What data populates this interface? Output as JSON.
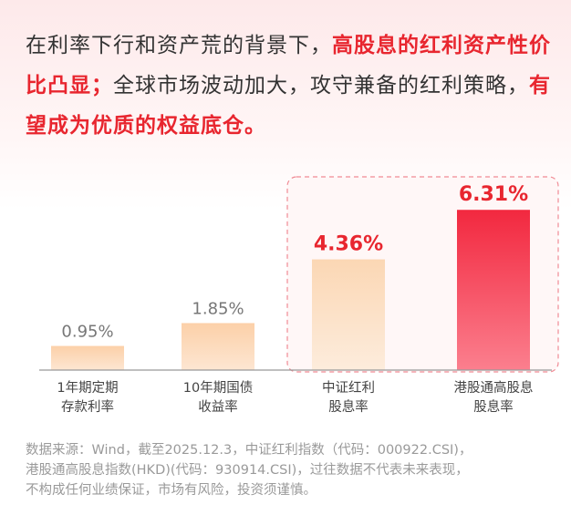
{
  "intro": {
    "part1": "在利率下行和资产荒的背景下，",
    "highlight1": "高股息的红利资产性价比凸显；",
    "part2": "全球市场波动加大，攻守兼备的红利策略，",
    "highlight2": "有望成为优质的权益底仓。"
  },
  "chart_data": {
    "type": "bar",
    "categories": [
      [
        "1年期定期",
        "存款利率"
      ],
      [
        "10年期国债",
        "收益率"
      ],
      [
        "中证红利",
        "股息率"
      ],
      [
        "港股通高股息",
        "股息率"
      ]
    ],
    "values": [
      0.95,
      1.85,
      4.36,
      6.31
    ],
    "value_labels": [
      "0.95%",
      "1.85%",
      "4.36%",
      "6.31%"
    ],
    "highlighted": [
      false,
      false,
      true,
      true
    ],
    "ylim": [
      0,
      7
    ],
    "grid": false,
    "colors": {
      "normal_bar": "#fbd7b5",
      "highlight_bar": "#fbe0c2",
      "accent_bar": "#f43d55",
      "normal_label": "#777777",
      "highlight_label": "#e8262f",
      "category_label": "#444444",
      "frame": "#f08a94",
      "axis": "#999999"
    }
  },
  "footnote": {
    "line1": "数据来源：Wind，截至2025.12.3，中证红利指数（代码：000922.CSI)，",
    "line2": "港股通高股息指数(HKD)(代码：930914.CSI)，过往数据不代表未来表现，",
    "line3": "不构成任何业绩保证，市场有风险，投资须谨慎。"
  }
}
